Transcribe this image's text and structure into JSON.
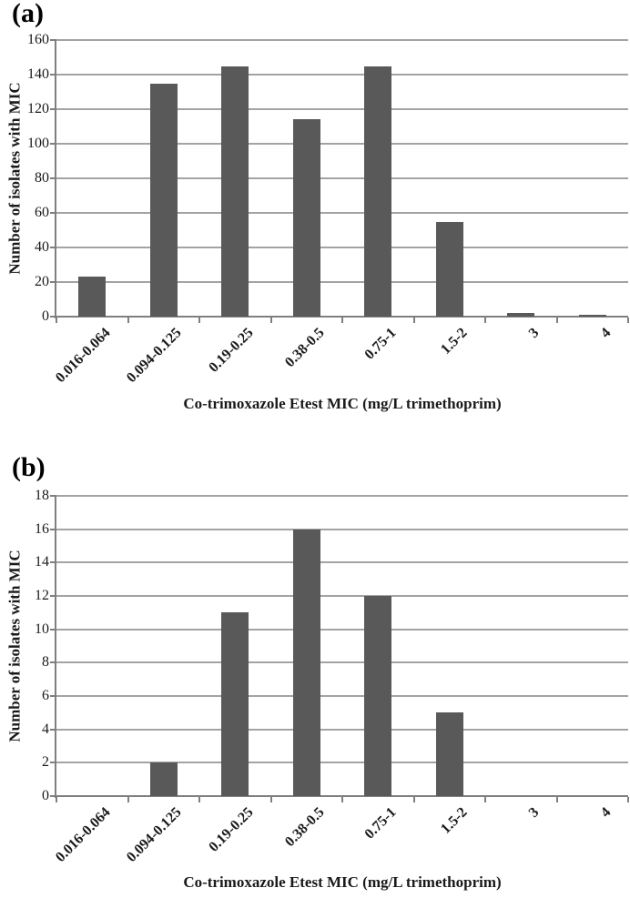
{
  "figure": {
    "background": "#ffffff",
    "bar_color": "#595959",
    "gridline_color": "#a3a3a3",
    "axis_color": "#7f7f7f",
    "text_color": "#1a1a1a"
  },
  "chart_data": [
    {
      "type": "bar",
      "panel": "(a)",
      "categories": [
        "0.016-0.064",
        "0.094-0.125",
        "0.19-0.25",
        "0.38-0.5",
        "0.75-1",
        "1.5-2",
        "3",
        "4"
      ],
      "values": [
        23,
        135,
        145,
        114,
        145,
        55,
        2,
        1
      ],
      "xlabel": "Co-trimoxazole Etest MIC (mg/L trimethoprim)",
      "ylabel": "Number of isolates with MIC",
      "ylim": [
        0,
        160
      ],
      "ytick_step": 20,
      "yticks": [
        0,
        20,
        40,
        60,
        80,
        100,
        120,
        140,
        160
      ],
      "grid": true,
      "legend": "none"
    },
    {
      "type": "bar",
      "panel": "(b)",
      "categories": [
        "0.016-0.064",
        "0.094-0.125",
        "0.19-0.25",
        "0.38-0.5",
        "0.75-1",
        "1.5-2",
        "3",
        "4"
      ],
      "values": [
        0,
        2,
        11,
        16,
        12,
        5,
        0,
        0
      ],
      "xlabel": "Co-trimoxazole Etest MIC (mg/L trimethoprim)",
      "ylabel": "Number of isolates with MIC",
      "ylim": [
        0,
        18
      ],
      "ytick_step": 2,
      "yticks": [
        0,
        2,
        4,
        6,
        8,
        10,
        12,
        14,
        16,
        18
      ],
      "grid": true,
      "legend": "none"
    }
  ]
}
